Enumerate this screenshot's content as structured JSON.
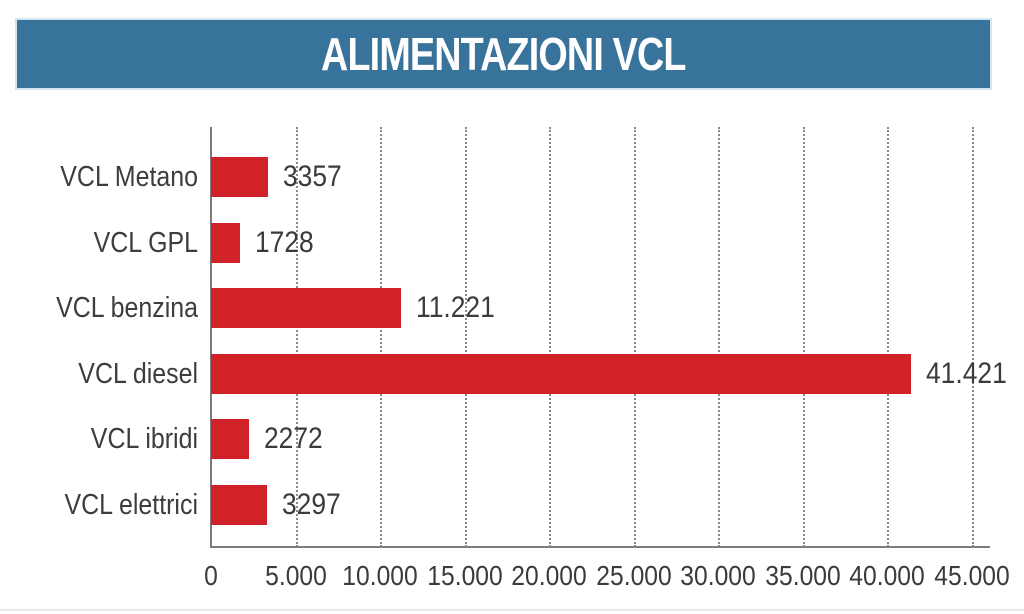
{
  "header": {
    "title": "ALIMENTAZIONI VCL",
    "bg_color": "#38739b",
    "text_color": "#ffffff",
    "border_color": "#d6e6ef"
  },
  "chart_data": {
    "type": "bar",
    "orientation": "horizontal",
    "title": "ALIMENTAZIONI VCL",
    "categories": [
      "VCL Metano",
      "VCL GPL",
      "VCL benzina",
      "VCL diesel",
      "VCL ibridi",
      "VCL elettrici"
    ],
    "values": [
      3357,
      1728,
      11221,
      41421,
      2272,
      3297
    ],
    "value_labels": [
      "3357",
      "1728",
      "11.221",
      "41.421",
      "2272",
      "3297"
    ],
    "xlim": [
      0,
      45000
    ],
    "x_ticks": [
      0,
      5000,
      10000,
      15000,
      20000,
      25000,
      30000,
      35000,
      40000,
      45000
    ],
    "x_tick_labels": [
      "0",
      "5.000",
      "10.000",
      "15.000",
      "20.000",
      "25.000",
      "30.000",
      "35.000",
      "40.000",
      "45.000"
    ],
    "bar_color": "#d12229",
    "axis_color": "#7d7d7d",
    "grid": true,
    "gridline_style": "dotted",
    "legend": "none",
    "xlabel": "",
    "ylabel": ""
  }
}
